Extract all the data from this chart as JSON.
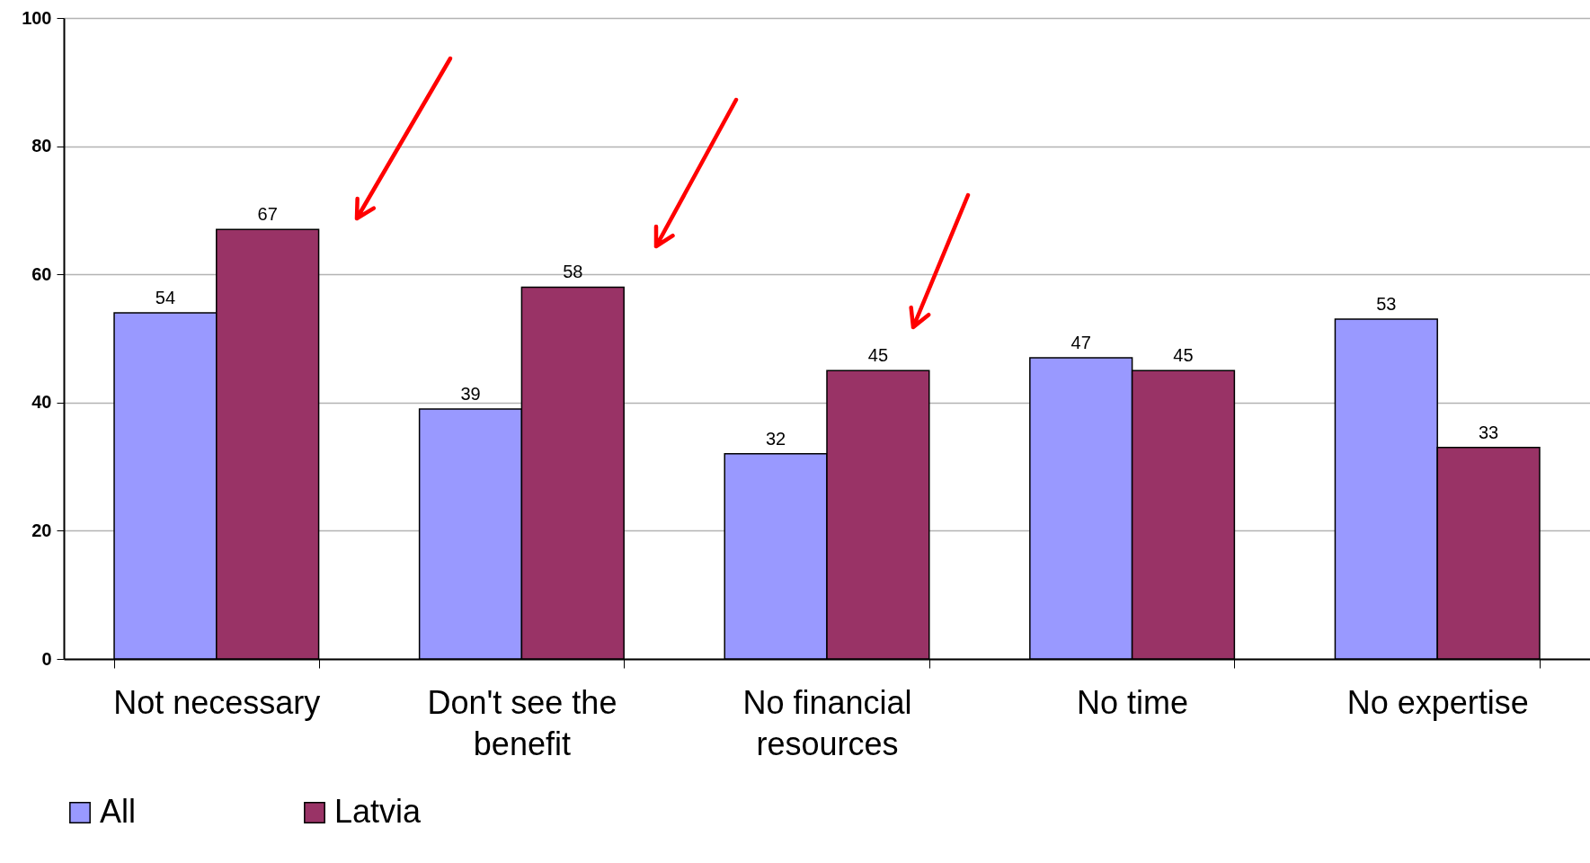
{
  "chart_data": {
    "type": "bar",
    "categories": [
      "Not necessary",
      "Don't see the benefit",
      "No financial resources",
      "No time",
      "No expertise"
    ],
    "series": [
      {
        "name": "All",
        "color": "#9999ff",
        "values": [
          54,
          39,
          32,
          47,
          53
        ]
      },
      {
        "name": "Latvia",
        "color": "#993366",
        "values": [
          67,
          58,
          45,
          45,
          33
        ]
      }
    ],
    "ylim": [
      0,
      100
    ],
    "yticks": [
      0,
      20,
      40,
      60,
      80,
      100
    ],
    "grid": "y",
    "legend": "bottom",
    "data_labels": true
  }
}
